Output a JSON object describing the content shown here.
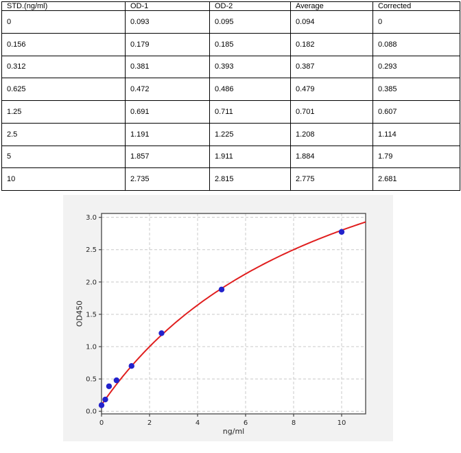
{
  "table": {
    "headers": [
      "STD.(ng/ml)",
      "OD-1",
      "OD-2",
      "Average",
      "Corrected"
    ],
    "rows": [
      [
        "0",
        "0.093",
        "0.095",
        "0.094",
        "0"
      ],
      [
        "0.156",
        "0.179",
        "0.185",
        "0.182",
        "0.088"
      ],
      [
        "0.312",
        "0.381",
        "0.393",
        "0.387",
        "0.293"
      ],
      [
        "0.625",
        "0.472",
        "0.486",
        "0.479",
        "0.385"
      ],
      [
        "1.25",
        "0.691",
        "0.711",
        "0.701",
        "0.607"
      ],
      [
        "2.5",
        "1.191",
        "1.225",
        "1.208",
        "1.114"
      ],
      [
        "5",
        "1.857",
        "1.911",
        "1.884",
        "1.79"
      ],
      [
        "10",
        "2.735",
        "2.815",
        "2.775",
        "2.681"
      ]
    ]
  },
  "chart_data": {
    "type": "scatter",
    "title": "",
    "xlabel": "ng/ml",
    "ylabel": "OD450",
    "x": [
      0,
      0.156,
      0.312,
      0.625,
      1.25,
      2.5,
      5,
      10
    ],
    "y": [
      0.094,
      0.182,
      0.387,
      0.479,
      0.701,
      1.208,
      1.884,
      2.775
    ],
    "fit_curve": {
      "model": "4PL",
      "formula": "y = d + (a - d) / (1 + (x / c) ^ b)",
      "a": 0.1,
      "b": 1.0,
      "c": 10.0,
      "d": 5.5,
      "x_start": 0,
      "x_end": 11
    },
    "xlim": [
      0,
      11
    ],
    "ylim": [
      -0.04,
      3.06
    ],
    "xticks": [
      0,
      2,
      4,
      6,
      8,
      10
    ],
    "xtick_labels": [
      "0",
      "2",
      "4",
      "6",
      "8",
      "10"
    ],
    "yticks": [
      0,
      0.5,
      1,
      1.5,
      2,
      2.5,
      3
    ],
    "ytick_labels": [
      "0.0",
      "0.5",
      "1.0",
      "1.5",
      "2.0",
      "2.5",
      "3.0"
    ],
    "grid": true,
    "grid_style": "dashed",
    "legend_position": "none",
    "colors": {
      "points": "#2222cc",
      "curve": "#e01e1e",
      "figure_bg": "#f2f2f2",
      "plot_bg": "#ffffff",
      "grid": "#c8c8c8",
      "spine": "#444444",
      "tick_text": "#262626"
    }
  }
}
